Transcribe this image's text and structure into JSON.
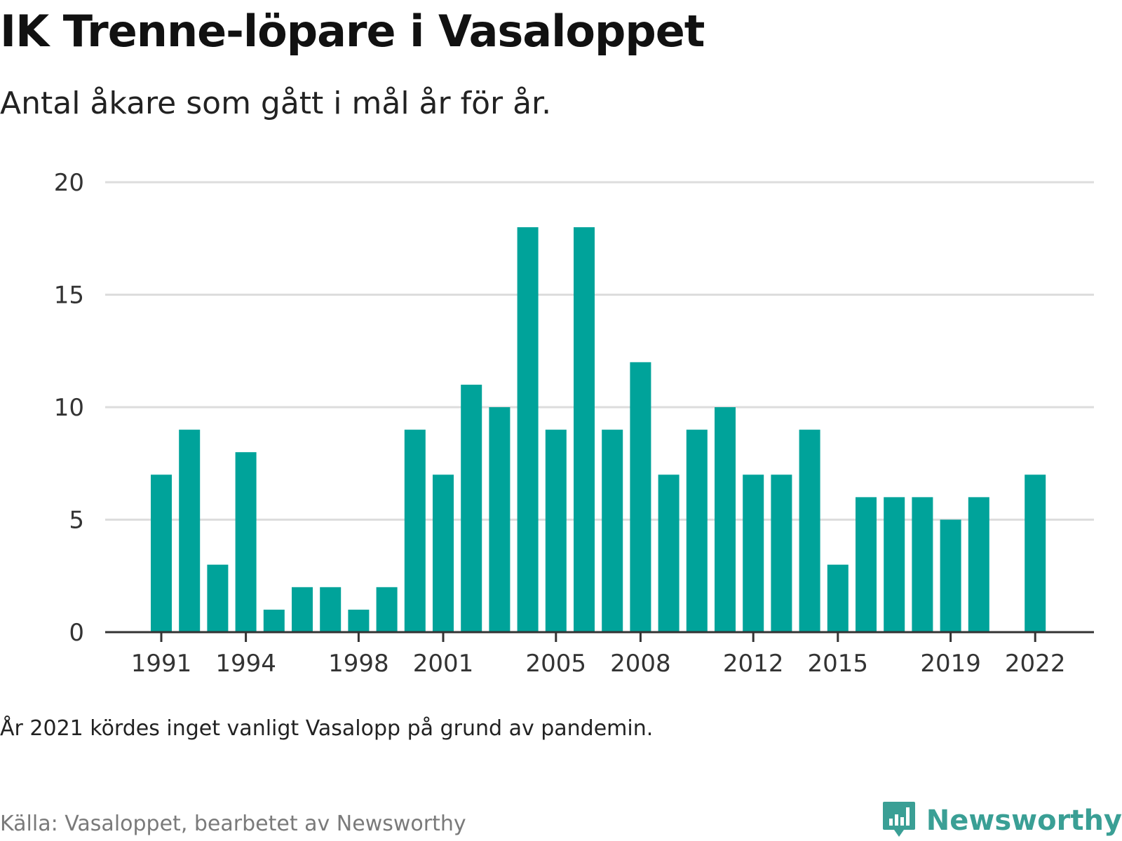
{
  "header": {
    "title": "IK Trenne-löpare i Vasaloppet",
    "subtitle": "Antal åkare som gått i mål år för år."
  },
  "footer": {
    "note": "År 2021 kördes inget vanligt Vasalopp på grund av pandemin.",
    "source": "Källa: Vasaloppet, bearbetet av Newsworthy",
    "logo_text": "Newsworthy",
    "logo_icon": "newsworthy-chart-bubble-icon"
  },
  "colors": {
    "bar": "#00a39a",
    "grid": "#dddddd",
    "axis": "#333333",
    "logo": "#3a9f95"
  },
  "chart_data": {
    "type": "bar",
    "x": [
      1991,
      1992,
      1993,
      1994,
      1995,
      1996,
      1997,
      1998,
      1999,
      2000,
      2001,
      2002,
      2003,
      2004,
      2005,
      2006,
      2007,
      2008,
      2009,
      2010,
      2011,
      2012,
      2013,
      2014,
      2015,
      2016,
      2017,
      2018,
      2019,
      2020,
      2021,
      2022
    ],
    "values": [
      7,
      9,
      3,
      8,
      1,
      2,
      2,
      1,
      2,
      9,
      7,
      11,
      10,
      18,
      9,
      18,
      9,
      12,
      7,
      9,
      10,
      7,
      7,
      9,
      3,
      6,
      6,
      6,
      5,
      6,
      null,
      7
    ],
    "x_ticks": [
      1991,
      1994,
      1998,
      2001,
      2005,
      2008,
      2012,
      2015,
      2019,
      2022
    ],
    "y_ticks": [
      0,
      5,
      10,
      15,
      20
    ],
    "ylim": [
      0,
      20
    ],
    "grid": true,
    "legend": "none"
  }
}
